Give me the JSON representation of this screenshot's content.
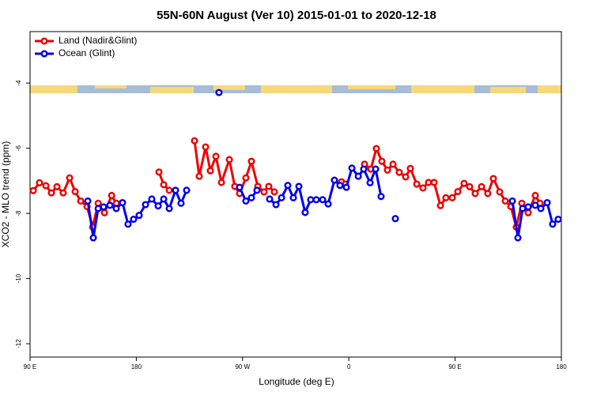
{
  "chart_data": {
    "type": "line",
    "title": "55N-60N August (Ver 10)   2015-01-01 to 2020-12-18",
    "x_label": "Longitude (deg E)",
    "y_label": "XCO2 - MLO trend (ppm)",
    "xlim": [
      90,
      540
    ],
    "xticks": [
      {
        "value": 90,
        "label": "90 E"
      },
      180,
      {
        "value": 270,
        "label": "90 W"
      },
      {
        "value": 360,
        "label": "0"
      },
      {
        "value": 450,
        "label": "90 E"
      },
      {
        "value": 540,
        "label": "180"
      }
    ],
    "ylim": [
      -12.41,
      -2.42
    ],
    "yticks": [
      -4,
      -6,
      -8,
      -10,
      -12
    ],
    "legend": "top-left",
    "series": [
      {
        "name": "Land (Nadir&Glint)",
        "color": "#ee0000",
        "x": [
          92.7,
          98.0,
          103.4,
          108.1,
          112.8,
          118.1,
          123.5,
          128.2,
          132.9,
          138.3,
          143.0,
          147.7,
          153.0,
          159.1,
          163.1,
          null,
          199.2,
          203.2,
          207.9,
          null,
          229.3,
          233.3,
          238.7,
          242.7,
          247.4,
          252.1,
          258.8,
          263.4,
          267.5,
          272.8,
          277.5,
          282.9,
          288.2,
          292.2,
          296.9,
          null,
          353.8,
          357.2,
          null,
          373.3,
          378.6,
          383.3,
          388.0,
          392.7,
          397.4,
          402.7,
          408.1,
          412.1,
          417.5,
          422.8,
          427.5,
          432.2,
          437.6,
          442.2,
          447.6,
          452.3,
          457.6,
          462.3,
          467.0,
          472.4,
          477.7,
          482.4,
          487.8,
          492.5,
          497.2,
          501.8,
          506.5,
          511.9,
          517.9,
          521.9
        ],
        "values": [
          -7.3,
          -7.06,
          -7.15,
          -7.37,
          -7.18,
          -7.37,
          -6.91,
          -7.33,
          -7.62,
          -7.79,
          -8.42,
          -7.69,
          -7.98,
          -7.45,
          -7.69,
          null,
          -6.73,
          -7.12,
          -7.29,
          null,
          -5.77,
          -6.86,
          -5.96,
          -6.69,
          -6.25,
          -7.05,
          -6.35,
          -7.17,
          -7.39,
          -6.91,
          -6.4,
          -7.17,
          -7.34,
          -7.17,
          -7.34,
          null,
          -7.03,
          -7.1,
          null,
          -6.49,
          -6.64,
          -6.01,
          -6.4,
          -6.67,
          -6.49,
          -6.74,
          -6.88,
          -6.62,
          -7.1,
          -7.22,
          -7.05,
          -7.05,
          -7.76,
          -7.52,
          -7.52,
          -7.33,
          -7.08,
          -7.18,
          -7.39,
          -7.18,
          -7.39,
          -6.93,
          -7.34,
          -7.62,
          -7.79,
          -8.42,
          -7.69,
          -7.98,
          -7.45,
          -7.69
        ]
      },
      {
        "name": "Ocean (Glint)",
        "color": "#0000ee",
        "x": [
          138.9,
          143.6,
          147.7,
          152.3,
          157.6,
          163.0,
          168.3,
          173.0,
          177.7,
          182.4,
          187.8,
          193.1,
          198.5,
          203.2,
          207.9,
          213.2,
          217.9,
          222.6,
          null,
          250.0,
          null,
          267.5,
          272.8,
          277.5,
          282.2,
          null,
          292.9,
          298.3,
          303.0,
          308.3,
          313.0,
          317.7,
          323.0,
          327.7,
          332.4,
          337.8,
          342.5,
          347.8,
          352.5,
          357.9,
          362.6,
          368.0,
          372.6,
          378.0,
          382.7,
          387.3,
          null,
          399.4,
          null,
          498.5,
          503.2,
          507.2,
          511.9,
          517.9,
          522.6,
          528.0,
          532.6,
          537.3
        ],
        "values": [
          -7.62,
          -8.75,
          -7.85,
          -7.8,
          -7.75,
          -7.85,
          -7.67,
          -8.33,
          -8.18,
          -8.06,
          -7.73,
          -7.56,
          -7.77,
          -7.56,
          -7.85,
          -7.29,
          -7.69,
          -7.29,
          null,
          -4.29,
          null,
          -7.2,
          -7.62,
          -7.52,
          -7.29,
          null,
          -7.56,
          -7.73,
          -7.52,
          -7.14,
          -7.52,
          -7.17,
          -7.97,
          -7.58,
          -7.58,
          -7.58,
          -7.71,
          -6.98,
          -7.14,
          -7.2,
          -6.61,
          -6.86,
          -6.64,
          -7.06,
          -6.64,
          -7.48,
          null,
          -8.16,
          null,
          -7.62,
          -8.75,
          -7.85,
          -7.8,
          -7.75,
          -7.85,
          -7.67,
          -8.33,
          -8.18
        ]
      }
    ]
  }
}
